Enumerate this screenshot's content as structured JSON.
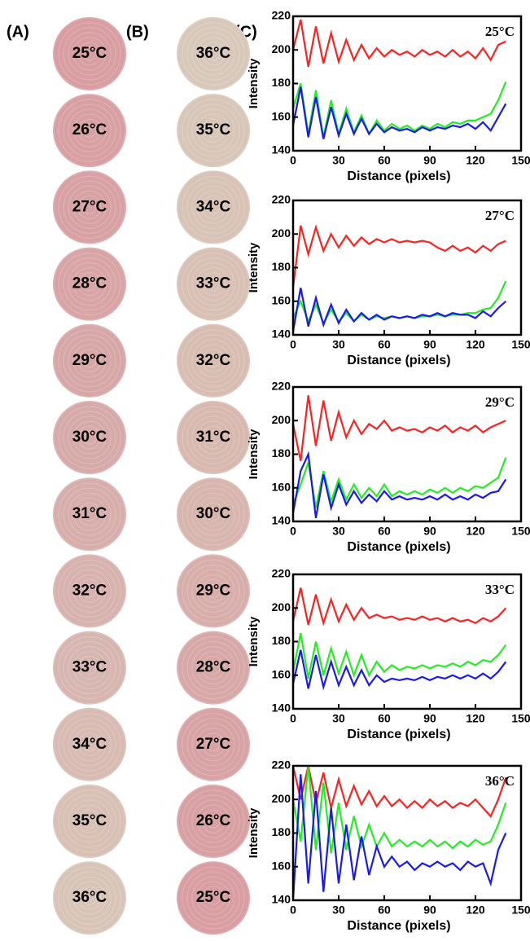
{
  "panels": [
    {
      "label": "(A)",
      "circles": [
        {
          "label": "25°C",
          "color": "#d89ea2"
        },
        {
          "label": "26°C",
          "color": "#d8a0a3"
        },
        {
          "label": "27°C",
          "color": "#d8a2a4"
        },
        {
          "label": "28°C",
          "color": "#d8a4a6"
        },
        {
          "label": "29°C",
          "color": "#d7a7a8"
        },
        {
          "label": "30°C",
          "color": "#d7aaaa"
        },
        {
          "label": "31°C",
          "color": "#d7aeac"
        },
        {
          "label": "32°C",
          "color": "#d7b2ae"
        },
        {
          "label": "33°C",
          "color": "#d7b6b1"
        },
        {
          "label": "34°C",
          "color": "#d8bbb3"
        },
        {
          "label": "35°C",
          "color": "#d8c0b5"
        },
        {
          "label": "36°C",
          "color": "#d8c5b8"
        }
      ]
    },
    {
      "label": "(B)",
      "circles": [
        {
          "label": "36°C",
          "color": "#d8c8ba"
        },
        {
          "label": "35°C",
          "color": "#d8c6b8"
        },
        {
          "label": "34°C",
          "color": "#d8c3b6"
        },
        {
          "label": "33°C",
          "color": "#d8c0b4"
        },
        {
          "label": "32°C",
          "color": "#d8bdb2"
        },
        {
          "label": "31°C",
          "color": "#d8b9b0"
        },
        {
          "label": "30°C",
          "color": "#d8b5ae"
        },
        {
          "label": "29°C",
          "color": "#d8aeab"
        },
        {
          "label": "28°C",
          "color": "#d8a8a8"
        },
        {
          "label": "27°C",
          "color": "#d8a3a5"
        },
        {
          "label": "26°C",
          "color": "#d8a0a3"
        },
        {
          "label": "25°C",
          "color": "#d89ea2"
        }
      ]
    }
  ],
  "panel_c_label": "(C)",
  "chart_data": [
    {
      "type": "line",
      "annotation": "25°C",
      "x_label": "Distance (pixels)",
      "y_label": "Intensity",
      "x": [
        0,
        5,
        10,
        15,
        20,
        25,
        30,
        35,
        40,
        45,
        50,
        55,
        60,
        65,
        70,
        75,
        80,
        85,
        90,
        95,
        100,
        105,
        110,
        115,
        120,
        125,
        130,
        135,
        140
      ],
      "series": [
        {
          "color": "#ff2020",
          "values": [
            200,
            218,
            190,
            214,
            192,
            210,
            193,
            206,
            194,
            203,
            195,
            201,
            196,
            200,
            197,
            199,
            196,
            200,
            197,
            199,
            196,
            200,
            196,
            199,
            195,
            201,
            194,
            203,
            205
          ]
        },
        {
          "color": "#22ee22",
          "values": [
            165,
            180,
            150,
            176,
            148,
            170,
            150,
            165,
            151,
            161,
            150,
            158,
            152,
            156,
            153,
            155,
            152,
            155,
            153,
            156,
            154,
            157,
            156,
            158,
            158,
            160,
            162,
            170,
            181
          ]
        },
        {
          "color": "#1a1aee",
          "values": [
            155,
            178,
            148,
            172,
            147,
            166,
            149,
            162,
            150,
            159,
            150,
            156,
            151,
            154,
            152,
            153,
            151,
            154,
            152,
            154,
            153,
            155,
            154,
            156,
            153,
            157,
            152,
            160,
            168
          ]
        }
      ],
      "xlim": [
        0,
        150
      ],
      "xticks": [
        0,
        30,
        60,
        90,
        120,
        150
      ],
      "ylim": [
        140,
        220
      ],
      "yticks": [
        140,
        160,
        180,
        200,
        220
      ]
    },
    {
      "type": "line",
      "annotation": "27°C",
      "x_label": "Distance (pixels)",
      "y_label": "Intensity",
      "x": [
        0,
        5,
        10,
        15,
        20,
        25,
        30,
        35,
        40,
        45,
        50,
        55,
        60,
        65,
        70,
        75,
        80,
        85,
        90,
        95,
        100,
        105,
        110,
        115,
        120,
        125,
        130,
        135,
        140
      ],
      "series": [
        {
          "color": "#ff2020",
          "values": [
            168,
            205,
            188,
            204,
            190,
            200,
            192,
            199,
            193,
            198,
            194,
            197,
            195,
            197,
            195,
            196,
            195,
            196,
            195,
            192,
            190,
            193,
            190,
            192,
            189,
            193,
            190,
            194,
            196
          ]
        },
        {
          "color": "#22ee22",
          "values": [
            150,
            160,
            148,
            158,
            147,
            155,
            148,
            153,
            148,
            152,
            149,
            151,
            150,
            151,
            150,
            151,
            150,
            151,
            151,
            152,
            151,
            152,
            152,
            153,
            153,
            155,
            156,
            162,
            172
          ]
        },
        {
          "color": "#1a1aee",
          "values": [
            142,
            168,
            145,
            162,
            146,
            158,
            147,
            155,
            148,
            153,
            149,
            152,
            149,
            151,
            150,
            151,
            150,
            152,
            151,
            153,
            151,
            153,
            152,
            152,
            150,
            154,
            151,
            156,
            160
          ]
        }
      ],
      "xlim": [
        0,
        150
      ],
      "xticks": [
        0,
        30,
        60,
        90,
        120,
        150
      ],
      "ylim": [
        140,
        220
      ],
      "yticks": [
        140,
        160,
        180,
        200,
        220
      ]
    },
    {
      "type": "line",
      "annotation": "29°C",
      "x_label": "Distance (pixels)",
      "y_label": "Intensity",
      "x": [
        0,
        5,
        10,
        15,
        20,
        25,
        30,
        35,
        40,
        45,
        50,
        55,
        60,
        65,
        70,
        75,
        80,
        85,
        90,
        95,
        100,
        105,
        110,
        115,
        120,
        125,
        130,
        135,
        140
      ],
      "series": [
        {
          "color": "#ff2020",
          "values": [
            198,
            176,
            215,
            185,
            212,
            188,
            205,
            190,
            200,
            192,
            198,
            195,
            200,
            194,
            196,
            194,
            195,
            193,
            196,
            194,
            197,
            193,
            196,
            194,
            197,
            193,
            196,
            198,
            200
          ]
        },
        {
          "color": "#22ee22",
          "values": [
            150,
            162,
            175,
            148,
            170,
            152,
            165,
            153,
            162,
            154,
            160,
            155,
            162,
            155,
            158,
            156,
            158,
            156,
            159,
            157,
            160,
            157,
            160,
            158,
            161,
            160,
            163,
            166,
            178
          ]
        },
        {
          "color": "#1a1aee",
          "values": [
            145,
            170,
            180,
            142,
            168,
            148,
            162,
            150,
            158,
            151,
            156,
            152,
            158,
            153,
            155,
            153,
            154,
            153,
            155,
            153,
            156,
            153,
            155,
            153,
            156,
            154,
            157,
            158,
            165
          ]
        }
      ],
      "xlim": [
        0,
        150
      ],
      "xticks": [
        0,
        30,
        60,
        90,
        120,
        150
      ],
      "ylim": [
        140,
        220
      ],
      "yticks": [
        140,
        160,
        180,
        200,
        220
      ]
    },
    {
      "type": "line",
      "annotation": "33°C",
      "x_label": "Distance (pixels)",
      "y_label": "Intensity",
      "x": [
        0,
        5,
        10,
        15,
        20,
        25,
        30,
        35,
        40,
        45,
        50,
        55,
        60,
        65,
        70,
        75,
        80,
        85,
        90,
        95,
        100,
        105,
        110,
        115,
        120,
        125,
        130,
        135,
        140
      ],
      "series": [
        {
          "color": "#ff2020",
          "values": [
            192,
            212,
            190,
            208,
            191,
            205,
            192,
            202,
            193,
            200,
            194,
            196,
            194,
            195,
            193,
            194,
            193,
            195,
            193,
            194,
            192,
            194,
            192,
            193,
            191,
            194,
            192,
            195,
            200
          ]
        },
        {
          "color": "#22ee22",
          "values": [
            162,
            185,
            158,
            180,
            160,
            176,
            161,
            174,
            160,
            172,
            160,
            168,
            162,
            166,
            163,
            165,
            164,
            166,
            164,
            166,
            165,
            167,
            165,
            168,
            166,
            169,
            168,
            172,
            178
          ]
        },
        {
          "color": "#1a1aee",
          "values": [
            155,
            175,
            152,
            172,
            153,
            168,
            154,
            165,
            154,
            163,
            154,
            160,
            156,
            158,
            157,
            158,
            157,
            159,
            157,
            159,
            158,
            160,
            158,
            160,
            158,
            161,
            158,
            162,
            168
          ]
        }
      ],
      "xlim": [
        0,
        150
      ],
      "xticks": [
        0,
        30,
        60,
        90,
        120,
        150
      ],
      "ylim": [
        140,
        220
      ],
      "yticks": [
        140,
        160,
        180,
        200,
        220
      ]
    },
    {
      "type": "line",
      "annotation": "36°C",
      "x_label": "Distance (pixels)",
      "y_label": "Intensity",
      "x": [
        0,
        5,
        10,
        15,
        20,
        25,
        30,
        35,
        40,
        45,
        50,
        55,
        60,
        65,
        70,
        75,
        80,
        85,
        90,
        95,
        100,
        105,
        110,
        115,
        120,
        125,
        130,
        135,
        140
      ],
      "series": [
        {
          "color": "#ff2020",
          "values": [
            220,
            200,
            220,
            198,
            216,
            195,
            212,
            196,
            208,
            197,
            205,
            196,
            202,
            196,
            200,
            195,
            199,
            195,
            200,
            196,
            199,
            195,
            198,
            196,
            200,
            195,
            190,
            200,
            213
          ]
        },
        {
          "color": "#22ee22",
          "values": [
            200,
            175,
            220,
            170,
            210,
            168,
            198,
            170,
            190,
            172,
            185,
            172,
            180,
            172,
            176,
            172,
            175,
            172,
            176,
            172,
            175,
            171,
            175,
            172,
            176,
            173,
            175,
            185,
            198
          ]
        },
        {
          "color": "#1a1aee",
          "values": [
            140,
            215,
            150,
            205,
            145,
            195,
            150,
            185,
            152,
            178,
            155,
            172,
            160,
            166,
            160,
            163,
            158,
            162,
            160,
            163,
            160,
            162,
            158,
            163,
            160,
            162,
            150,
            170,
            180
          ]
        }
      ],
      "xlim": [
        0,
        150
      ],
      "xticks": [
        0,
        30,
        60,
        90,
        120,
        150
      ],
      "ylim": [
        140,
        220
      ],
      "yticks": [
        140,
        160,
        180,
        200,
        220
      ]
    }
  ]
}
